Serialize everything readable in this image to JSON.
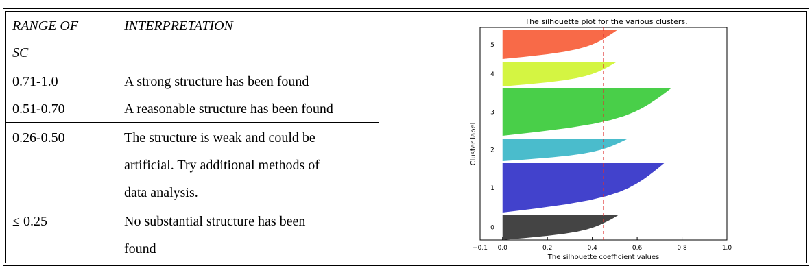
{
  "table": {
    "headers": {
      "range": "RANGE OF SC",
      "range_line1": "RANGE OF",
      "range_line2": "SC",
      "interpretation": "INTERPRETATION"
    },
    "rows": [
      {
        "range": "0.71-1.0",
        "interpretation_lines": [
          "A strong structure has been found"
        ]
      },
      {
        "range": "0.51-0.70",
        "interpretation_lines": [
          "A reasonable structure has been found"
        ]
      },
      {
        "range": "0.26-0.50",
        "interpretation_lines": [
          "The structure is weak and could be",
          "artificial. Try additional methods of",
          "data analysis."
        ]
      },
      {
        "range": "≤ 0.25",
        "interpretation_lines": [
          "No substantial structure has been",
          "found"
        ]
      }
    ]
  },
  "chart_data": {
    "type": "area",
    "title": "The silhouette plot for the various clusters.",
    "xlabel": "The silhouette coefficient values",
    "ylabel": "Cluster label",
    "xlim": [
      -0.1,
      1.0
    ],
    "xticks": [
      -0.1,
      0.0,
      0.2,
      0.4,
      0.6,
      0.8,
      1.0
    ],
    "xtick_labels": [
      "−0.1",
      "0.0",
      "0.2",
      "0.4",
      "0.6",
      "0.8",
      "1.0"
    ],
    "average_line": 0.45,
    "grid": false,
    "clusters": [
      {
        "label": "0",
        "color": "#444444",
        "max_value": 0.52,
        "min_value": 0.0
      },
      {
        "label": "1",
        "color": "#4242cc",
        "max_value": 0.72,
        "min_value": 0.0
      },
      {
        "label": "2",
        "color": "#4abccc",
        "max_value": 0.56,
        "min_value": 0.0
      },
      {
        "label": "3",
        "color": "#49cf49",
        "max_value": 0.75,
        "min_value": 0.0
      },
      {
        "label": "4",
        "color": "#d4f542",
        "max_value": 0.51,
        "min_value": 0.0
      },
      {
        "label": "5",
        "color": "#f86a48",
        "max_value": 0.51,
        "min_value": 0.0
      }
    ]
  }
}
